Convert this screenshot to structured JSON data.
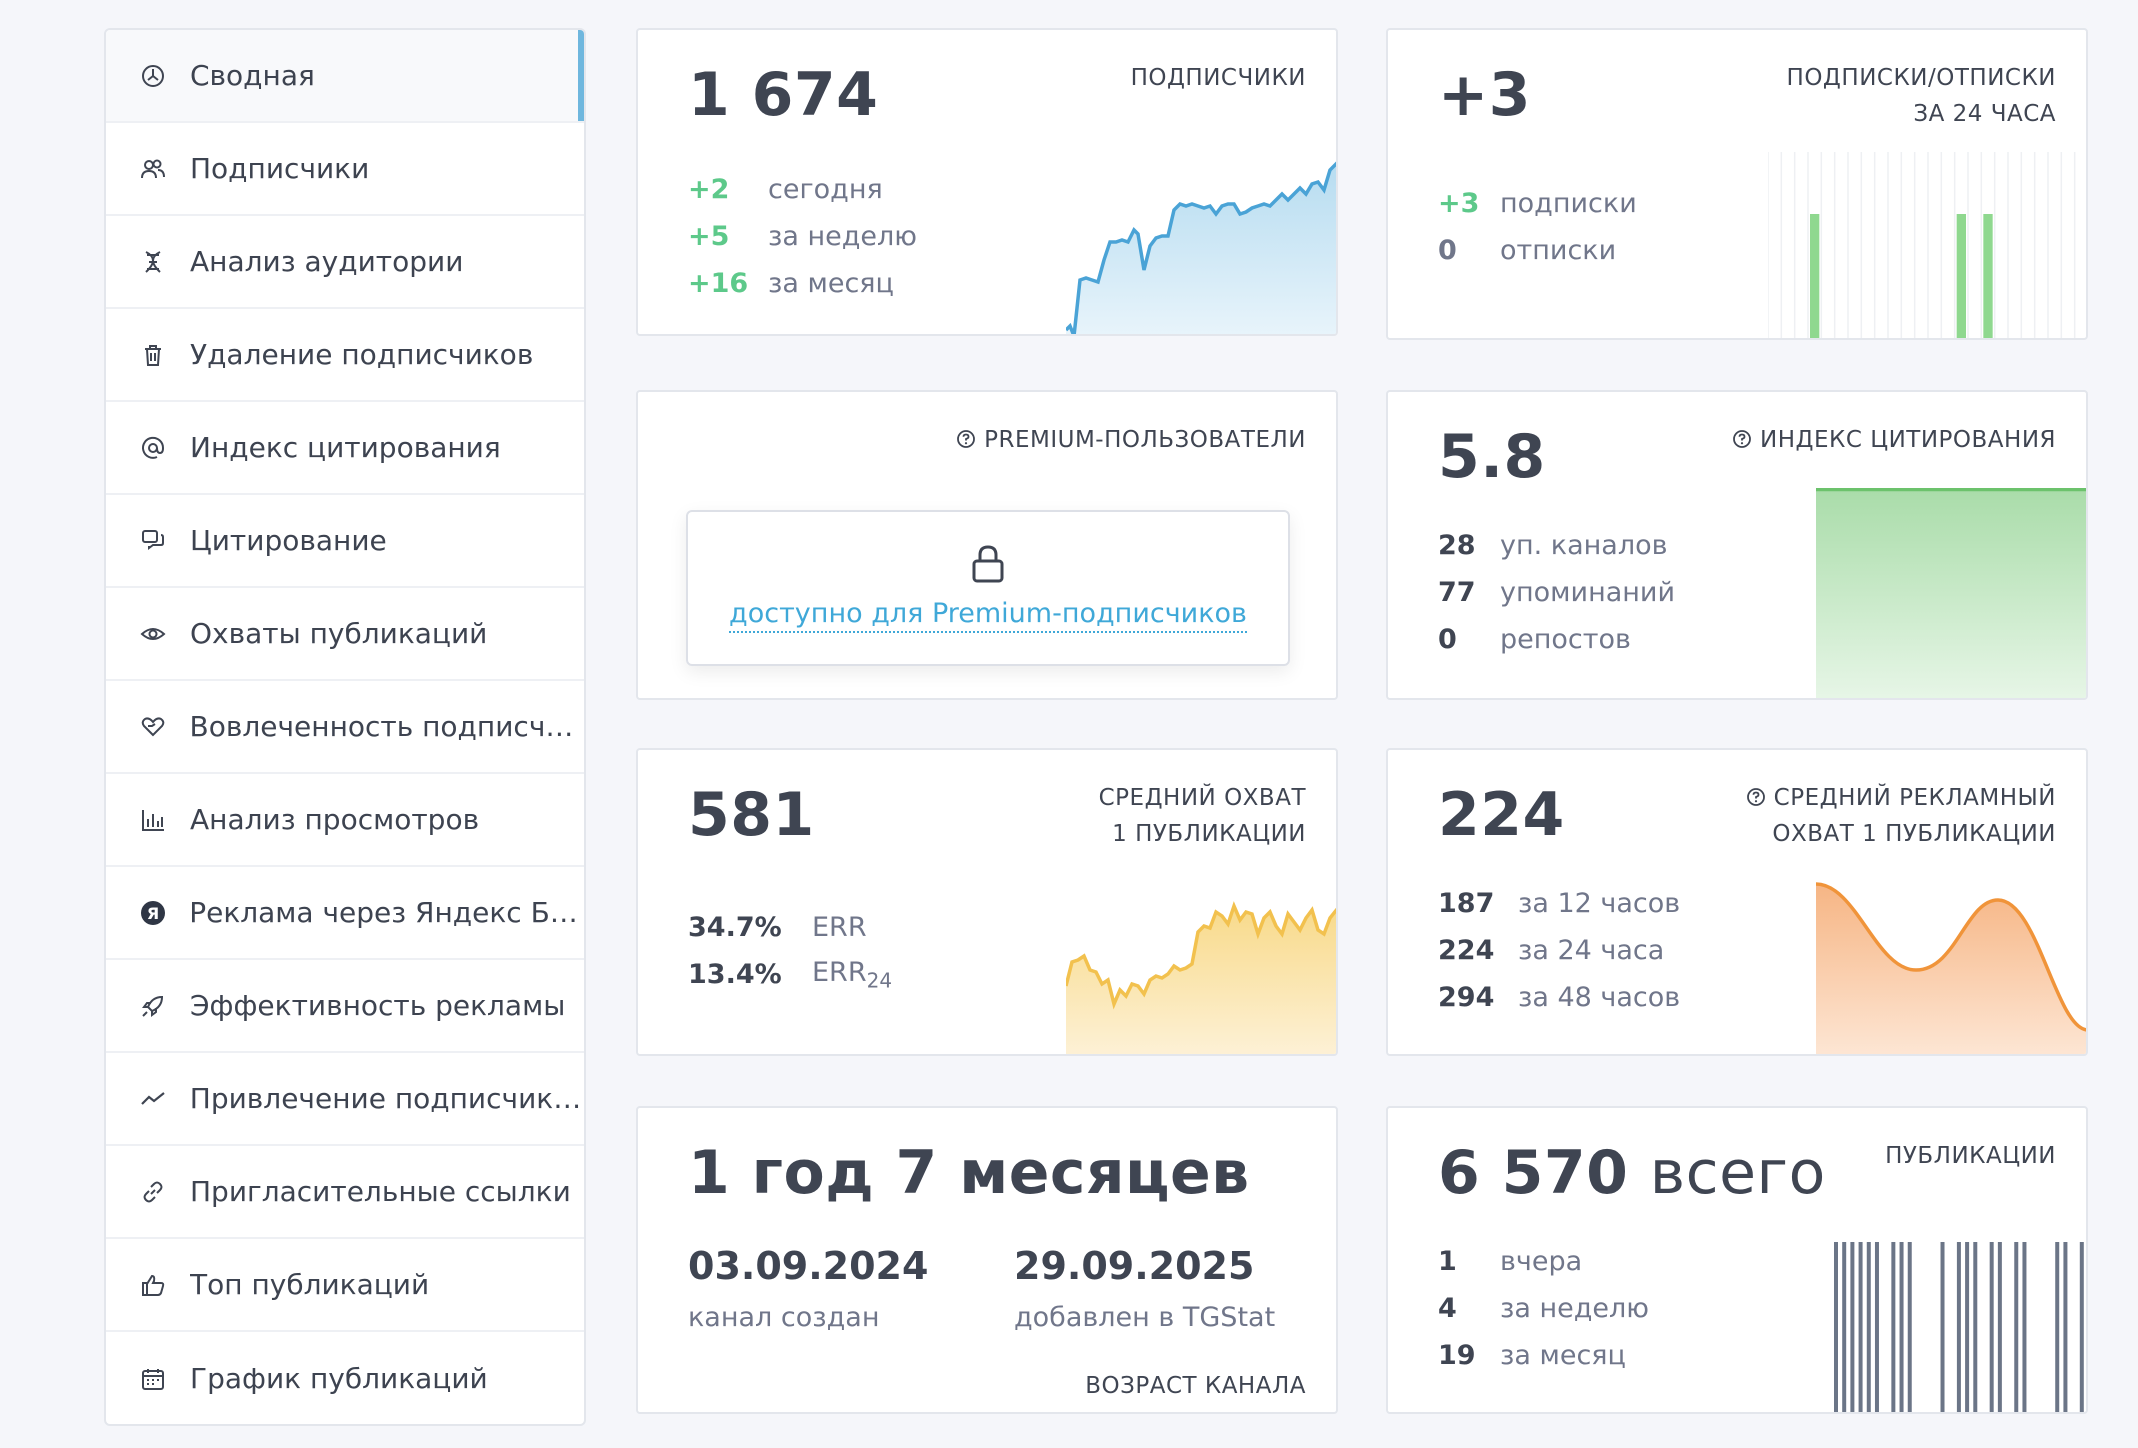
{
  "sidebar": {
    "items": [
      {
        "label": "Сводная",
        "icon": "dashboard-icon"
      },
      {
        "label": "Подписчики",
        "icon": "users-icon"
      },
      {
        "label": "Анализ аудитории",
        "icon": "dna-icon"
      },
      {
        "label": "Удаление подписчиков",
        "icon": "trash-icon"
      },
      {
        "label": "Индекс цитирования",
        "icon": "at-icon"
      },
      {
        "label": "Цитирование",
        "icon": "quote-icon"
      },
      {
        "label": "Охваты публикаций",
        "icon": "eye-icon"
      },
      {
        "label": "Вовлеченность подписчи...",
        "icon": "heart-hand-icon"
      },
      {
        "label": "Анализ просмотров",
        "icon": "bar-chart-icon"
      },
      {
        "label": "Реклама через Яндекс Би...",
        "icon": "yandex-icon"
      },
      {
        "label": "Эффективность рекламы",
        "icon": "rocket-icon"
      },
      {
        "label": "Привлечение подписчиков",
        "icon": "trend-icon"
      },
      {
        "label": "Пригласительные ссылки",
        "icon": "link-icon"
      },
      {
        "label": "Топ публикаций",
        "icon": "thumbs-up-icon"
      },
      {
        "label": "График публикаций",
        "icon": "calendar-icon"
      }
    ]
  },
  "subscribers": {
    "title": "ПОДПИСЧИКИ",
    "value": "1 674",
    "rows": [
      {
        "value": "+2",
        "label": "сегодня"
      },
      {
        "value": "+5",
        "label": "за неделю"
      },
      {
        "value": "+16",
        "label": "за месяц"
      }
    ],
    "color": "#4aa3d6"
  },
  "subs_unsubs": {
    "title_line1": "ПОДПИСКИ/ОТПИСКИ",
    "title_line2": "ЗА 24 ЧАСА",
    "value": "+3",
    "rows": [
      {
        "value": "+3",
        "label": "подписки"
      },
      {
        "value": "0",
        "label": "отписки"
      }
    ],
    "color": "#8fd88f"
  },
  "premium": {
    "title": "PREMIUM-ПОЛЬЗОВАТЕЛИ",
    "link_text": "доступно для Premium-подписчиков"
  },
  "citation": {
    "title": "ИНДЕКС ЦИТИРОВАНИЯ",
    "value": "5.8",
    "rows": [
      {
        "value": "28",
        "label": "уп. каналов"
      },
      {
        "value": "77",
        "label": "упоминаний"
      },
      {
        "value": "0",
        "label": "репостов"
      }
    ],
    "color": "#6cc26c"
  },
  "avg_reach": {
    "title_line1": "СРЕДНИЙ ОХВАТ",
    "title_line2": "1 ПУБЛИКАЦИИ",
    "value": "581",
    "rows": [
      {
        "value": "34.7%",
        "label": "ERR",
        "sub": ""
      },
      {
        "value": "13.4%",
        "label": "ERR",
        "sub": "24"
      }
    ],
    "color": "#f2c14e"
  },
  "avg_ad_reach": {
    "title_line1": "СРЕДНИЙ РЕКЛАМНЫЙ",
    "title_line2": "ОХВАТ 1 ПУБЛИКАЦИИ",
    "value": "224",
    "rows": [
      {
        "value": "187",
        "label": "за 12 часов"
      },
      {
        "value": "224",
        "label": "за 24 часа"
      },
      {
        "value": "294",
        "label": "за 48 часов"
      }
    ],
    "color": "#f0943a"
  },
  "age": {
    "value": "1 год 7 месяцев",
    "created_date": "03.09.2024",
    "created_label": "канал создан",
    "added_date": "29.09.2025",
    "added_label": "добавлен в TGStat",
    "title": "ВОЗРАСТ КАНАЛА"
  },
  "publications": {
    "title": "ПУБЛИКАЦИИ",
    "value_num": "6 570",
    "value_word": "всего",
    "rows": [
      {
        "value": "1",
        "label": "вчера"
      },
      {
        "value": "4",
        "label": "за неделю"
      },
      {
        "value": "19",
        "label": "за месяц"
      }
    ],
    "color": "#6b7587"
  }
}
